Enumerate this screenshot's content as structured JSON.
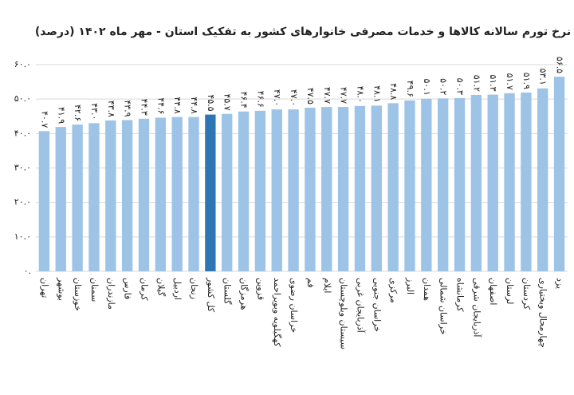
{
  "chart_data": {
    "type": "bar",
    "title": "نرخ تورم سالانه کالاها و خدمات مصرفی خانوارهای کشور به تفکیک استان - مهر ماه ۱۴۰۲ (درصد)",
    "categories": [
      "تهران",
      "بوشهر",
      "خوزستان",
      "سمنان",
      "مازندران",
      "فارس",
      "کرمان",
      "گیلان",
      "اردبیل",
      "زنجان",
      "کل کشور",
      "گلستان",
      "هرمزگان",
      "قزوین",
      "کهگیلویه وبویراحمد",
      "خراسان رضوی",
      "قم",
      "ایلام",
      "سیستان وبلوچستان",
      "آذربایجان غربی",
      "خراسان جنوبی",
      "مرکزی",
      "البرز",
      "همدان",
      "خراسان شمالی",
      "کرمانشاه",
      "آذربایجان شرقی",
      "اصفهان",
      "لرستان",
      "کردستان",
      "چهارمحال وبختیاری",
      "یزد"
    ],
    "values": [
      40.7,
      41.9,
      42.6,
      43.0,
      43.8,
      43.9,
      44.3,
      44.6,
      44.8,
      44.8,
      45.5,
      45.7,
      46.4,
      46.6,
      47.0,
      47.0,
      47.5,
      47.7,
      47.7,
      48.0,
      48.1,
      48.8,
      49.6,
      50.1,
      50.2,
      50.3,
      51.2,
      51.3,
      51.7,
      51.9,
      53.1,
      56.5
    ],
    "value_labels": [
      "۴۰.۷",
      "۴۱.۹",
      "۴۲.۶",
      "۴۳.۰",
      "۴۳.۸",
      "۴۳.۹",
      "۴۴.۳",
      "۴۴.۶",
      "۴۴.۸",
      "۴۴.۸",
      "۴۵.۵",
      "۴۵.۷",
      "۴۶.۴",
      "۴۶.۶",
      "۴۷.۰",
      "۴۷.۰",
      "۴۷.۵",
      "۴۷.۷",
      "۴۷.۷",
      "۴۸.۰",
      "۴۸.۱",
      "۴۸.۸",
      "۴۹.۶",
      "۵۰.۱",
      "۵۰.۲",
      "۵۰.۳",
      "۵۱.۲",
      "۵۱.۳",
      "۵۱.۷",
      "۵۱.۹",
      "۵۳.۱",
      "۵۶.۵"
    ],
    "colors": [
      "#9dc3e6",
      "#9dc3e6",
      "#9dc3e6",
      "#9dc3e6",
      "#9dc3e6",
      "#9dc3e6",
      "#9dc3e6",
      "#9dc3e6",
      "#9dc3e6",
      "#9dc3e6",
      "#2e75b6",
      "#9dc3e6",
      "#9dc3e6",
      "#9dc3e6",
      "#9dc3e6",
      "#9dc3e6",
      "#9dc3e6",
      "#9dc3e6",
      "#9dc3e6",
      "#9dc3e6",
      "#9dc3e6",
      "#9dc3e6",
      "#9dc3e6",
      "#9dc3e6",
      "#9dc3e6",
      "#9dc3e6",
      "#9dc3e6",
      "#9dc3e6",
      "#9dc3e6",
      "#9dc3e6",
      "#9dc3e6",
      "#9dc3e6"
    ],
    "ylim": [
      0,
      60
    ],
    "yticks": [
      {
        "value": 0,
        "label": "۰."
      },
      {
        "value": 10,
        "label": "۱۰.۰"
      },
      {
        "value": 20,
        "label": "۲۰.۰"
      },
      {
        "value": 30,
        "label": "۳۰.۰"
      },
      {
        "value": 40,
        "label": "۴۰.۰"
      },
      {
        "value": 50,
        "label": "۵۰.۰"
      },
      {
        "value": 60,
        "label": "۶۰.۰"
      }
    ],
    "grid": true
  }
}
